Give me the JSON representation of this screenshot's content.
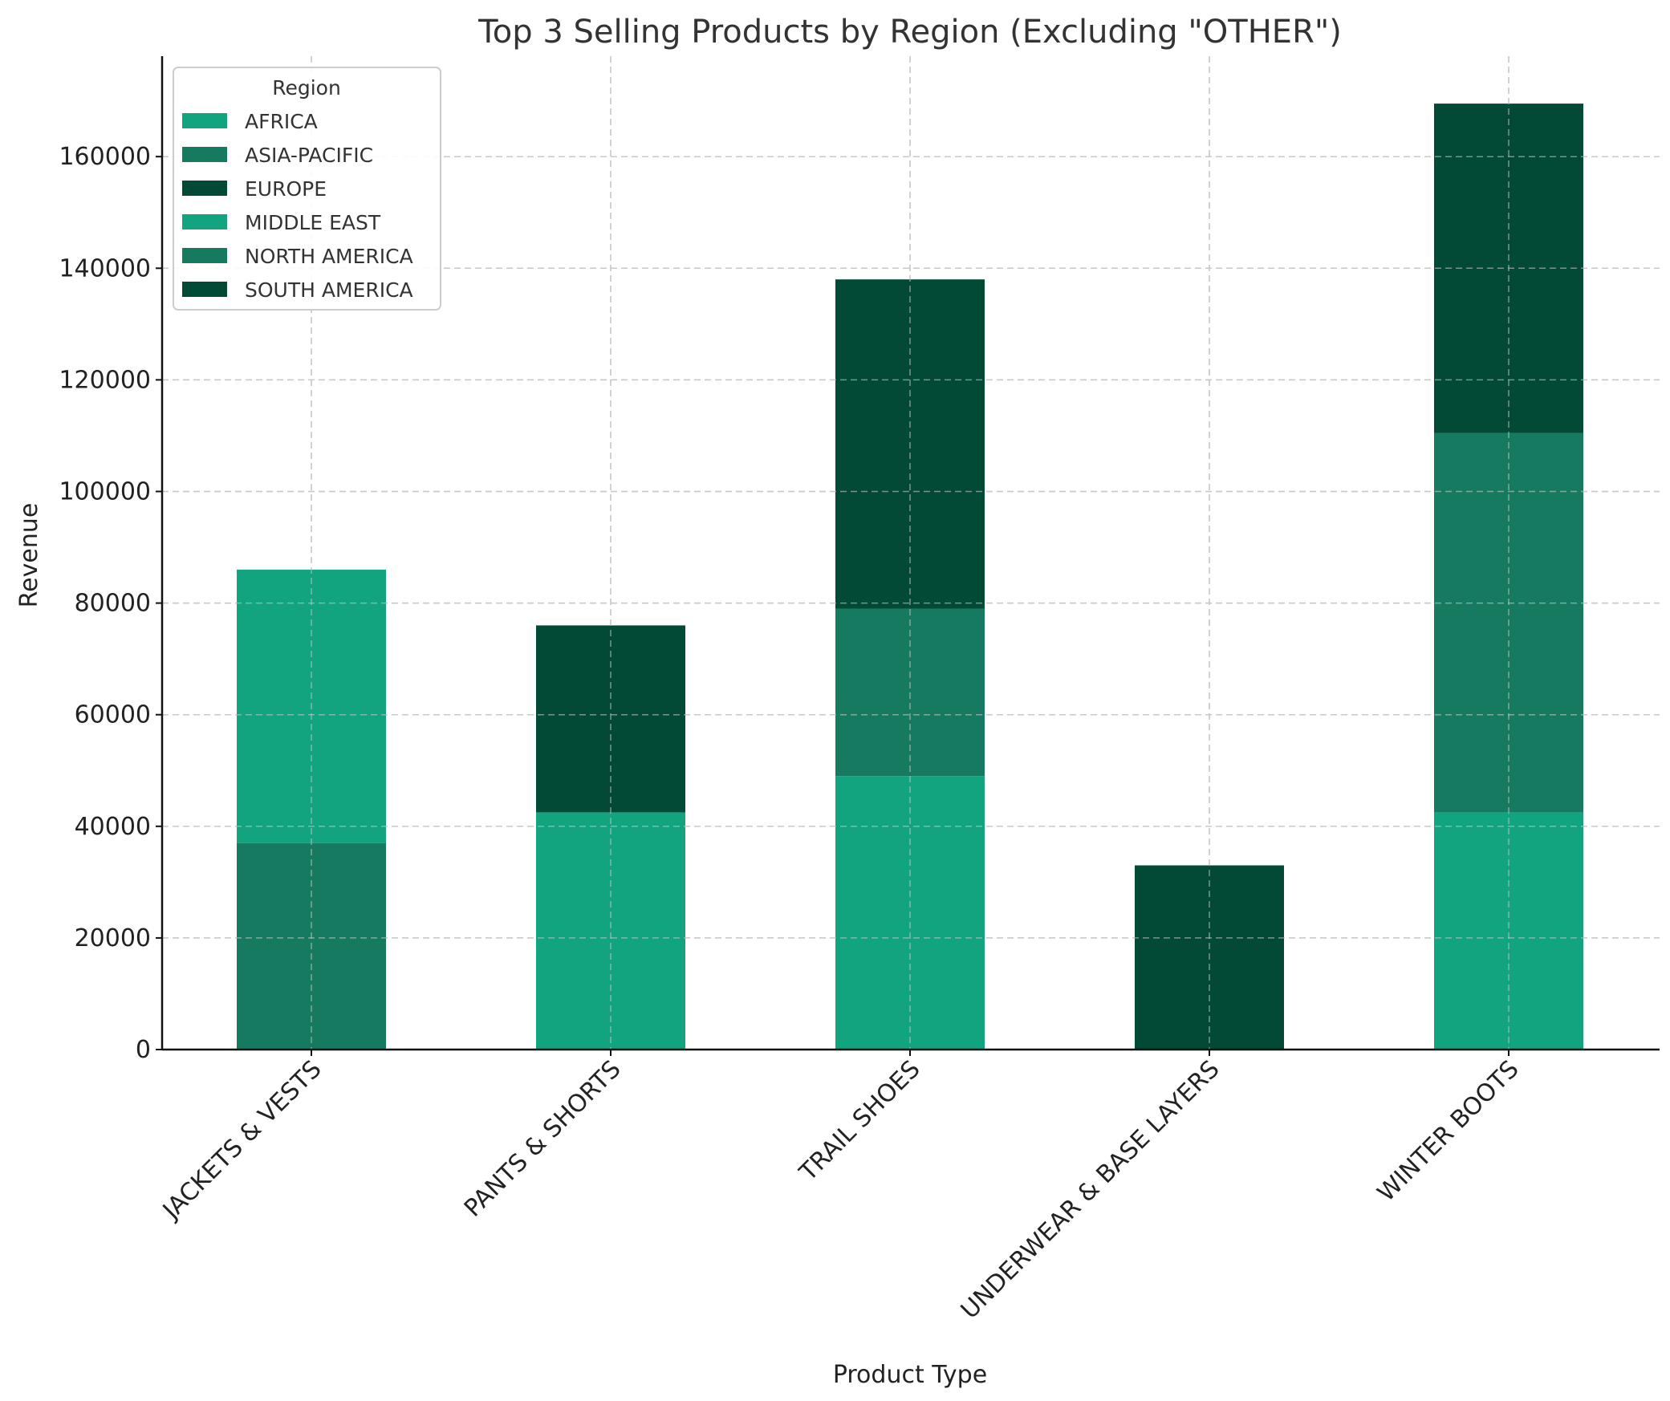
{
  "chart_data": {
    "type": "bar",
    "stacked": true,
    "title": "Top 3 Selling Products by Region (Excluding \"OTHER\")",
    "xlabel": "Product Type",
    "ylabel": "Revenue",
    "ylim": [
      0,
      178000
    ],
    "yticks": [
      0,
      20000,
      40000,
      60000,
      80000,
      100000,
      120000,
      140000,
      160000
    ],
    "grid": true,
    "legend_title": "Region",
    "legend_position": "top-left",
    "categories": [
      "JACKETS & VESTS",
      "PANTS & SHORTS",
      "TRAIL SHOES",
      "UNDERWEAR & BASE LAYERS",
      "WINTER BOOTS"
    ],
    "series": [
      {
        "name": "AFRICA",
        "color": "#12a37f",
        "values": [
          0,
          42500,
          0,
          0,
          0
        ]
      },
      {
        "name": "ASIA-PACIFIC",
        "color": "#167a60",
        "values": [
          0,
          0,
          0,
          0,
          0
        ]
      },
      {
        "name": "EUROPE",
        "color": "#024936",
        "values": [
          0,
          0,
          0,
          0,
          0
        ]
      },
      {
        "name": "MIDDLE EAST",
        "color": "#12a37f",
        "values": [
          0,
          0,
          49000,
          0,
          42500
        ]
      },
      {
        "name": "NORTH AMERICA",
        "color": "#167a60",
        "values": [
          37000,
          0,
          30000,
          0,
          68000
        ]
      },
      {
        "name": "SOUTH AMERICA",
        "color": "#024936",
        "values": [
          0,
          33500,
          59000,
          33000,
          59000
        ]
      }
    ],
    "extra_stacks": [
      {
        "category": "JACKETS & VESTS",
        "series": "MIDDLE EAST",
        "value": 49000
      }
    ]
  }
}
